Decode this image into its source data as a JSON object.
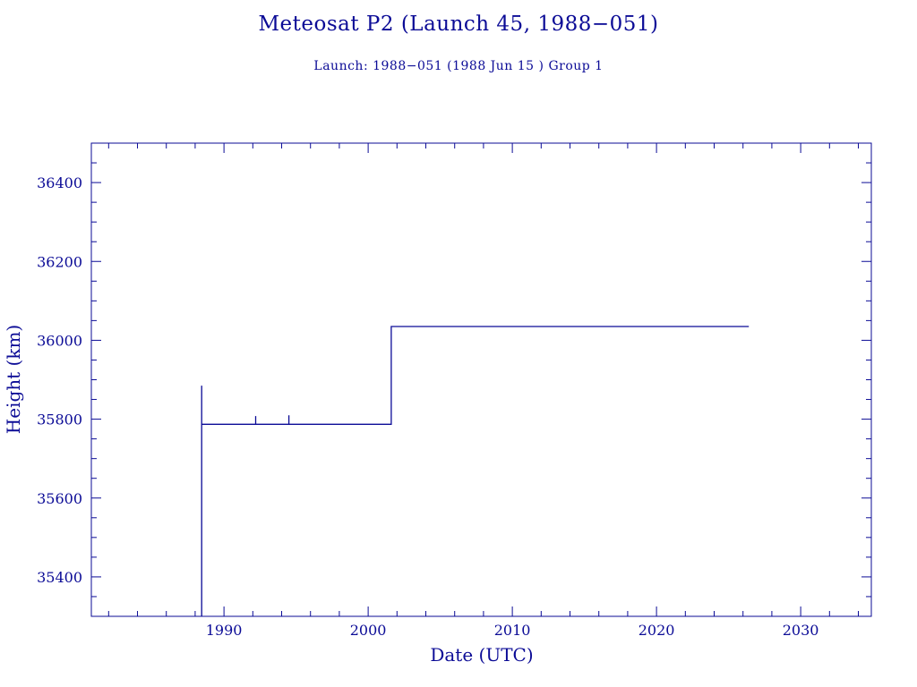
{
  "chart_data": {
    "type": "line",
    "title": "Meteosat P2 (Launch 45, 1988−051)",
    "subtitle": "Launch: 1988−051  (1988 Jun 15 )  Group 1",
    "xlabel": "Date (UTC)",
    "ylabel": "Height (km)",
    "xlim": [
      1980.8,
      2034.9
    ],
    "ylim": [
      35300,
      36500
    ],
    "x_ticks": [
      1990,
      2000,
      2010,
      2020,
      2030
    ],
    "x_tick_labels": [
      "1990",
      "2000",
      "2010",
      "2020",
      "2030"
    ],
    "y_ticks": [
      35400,
      35600,
      35800,
      36000,
      36200,
      36400
    ],
    "y_tick_labels": [
      "35400",
      "35600",
      "35800",
      "36000",
      "36200",
      "36400"
    ],
    "grid": false,
    "line_color": "#0b0b96",
    "series": [
      {
        "x": [
          1988.45,
          1988.45,
          1988.45,
          1988.45,
          1992.0,
          1992.2,
          1992.2,
          1992.2,
          1994.4,
          1994.5,
          1994.5,
          1994.5,
          1996.5,
          2001.6,
          2001.6,
          2026.4
        ],
        "y": [
          35300,
          35885,
          35787,
          35787,
          35787,
          35787,
          35808,
          35787,
          35787,
          35787,
          35810,
          35787,
          35787,
          35787,
          36035,
          36035
        ]
      }
    ]
  }
}
